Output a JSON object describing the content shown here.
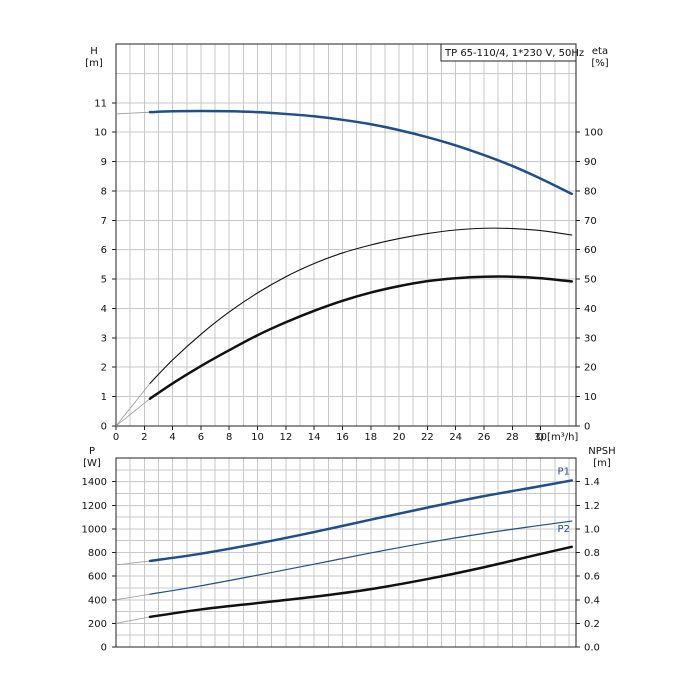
{
  "chart_data": [
    {
      "type": "line",
      "title": "TP 65-110/4, 1*230 V, 50Hz",
      "xlabel": "Q [m³/h]",
      "ylabel_left": [
        "H",
        "[m]"
      ],
      "ylabel_right": [
        "eta",
        "[%]"
      ],
      "xlim": [
        0,
        32.5
      ],
      "ylim_left": [
        0,
        13
      ],
      "ylim_right": [
        0,
        130
      ],
      "x_ticks": [
        0,
        2,
        4,
        6,
        8,
        10,
        12,
        14,
        16,
        18,
        20,
        22,
        24,
        26,
        28,
        30
      ],
      "y_ticks_left": [
        0,
        1,
        2,
        3,
        4,
        5,
        6,
        7,
        8,
        9,
        10,
        11
      ],
      "y_ticks_right": [
        0,
        10,
        20,
        30,
        40,
        50,
        60,
        70,
        80,
        90,
        100
      ],
      "grid": true,
      "series": [
        {
          "key": "H",
          "axis": "left",
          "color": "#1f4e8c",
          "width": 2.5,
          "ext_x": [
            0,
            2.4
          ],
          "ext_y": [
            10.62,
            10.68
          ],
          "x": [
            2.4,
            4,
            6,
            8,
            10,
            12,
            14,
            16,
            18,
            20,
            22,
            24,
            26,
            28,
            30,
            32.2
          ],
          "y": [
            10.68,
            10.71,
            10.72,
            10.71,
            10.68,
            10.62,
            10.54,
            10.42,
            10.27,
            10.07,
            9.83,
            9.55,
            9.22,
            8.85,
            8.42,
            7.9
          ]
        },
        {
          "key": "eta_thin",
          "axis": "right",
          "color": "#111111",
          "width": 1.1,
          "ext_x": [
            0,
            2.4
          ],
          "ext_y": [
            0,
            14.5
          ],
          "x": [
            2.4,
            4,
            6,
            8,
            10,
            12,
            14,
            16,
            18,
            20,
            22,
            24,
            26,
            28,
            30,
            32.2
          ],
          "y": [
            14.5,
            22.5,
            31.2,
            38.8,
            45.3,
            50.8,
            55.3,
            58.9,
            61.6,
            63.8,
            65.5,
            66.7,
            67.3,
            67.2,
            66.5,
            65.0
          ]
        },
        {
          "key": "eta_thick",
          "axis": "right",
          "color": "#111111",
          "width": 2.5,
          "ext_x": [
            0,
            2.4
          ],
          "ext_y": [
            0,
            9.3
          ],
          "x": [
            2.4,
            4,
            6,
            8,
            10,
            12,
            14,
            16,
            18,
            20,
            22,
            24,
            26,
            28,
            30,
            32.2
          ],
          "y": [
            9.3,
            14.5,
            20.4,
            25.8,
            30.9,
            35.3,
            39.2,
            42.6,
            45.4,
            47.6,
            49.3,
            50.3,
            50.8,
            50.8,
            50.3,
            49.2
          ]
        }
      ]
    },
    {
      "type": "line",
      "xlim": [
        0,
        32.5
      ],
      "ylabel_left": [
        "P",
        "[W]"
      ],
      "ylabel_right": [
        "NPSH",
        "[m]"
      ],
      "ylim_left": [
        0,
        1600
      ],
      "ylim_right": [
        0,
        1.6
      ],
      "y_ticks_left": [
        0,
        200,
        400,
        600,
        800,
        1000,
        1200,
        1400
      ],
      "y_ticks_right": [
        "0.0",
        "0.2",
        "0.4",
        "0.6",
        "0.8",
        "1.0",
        "1.2",
        "1.4"
      ],
      "grid": true,
      "series": [
        {
          "key": "P1",
          "name": "P1",
          "axis": "left",
          "color": "#1f4e8c",
          "width": 2.5,
          "ext_x": [
            0,
            2.4
          ],
          "ext_y": [
            695,
            728
          ],
          "x": [
            2.4,
            6,
            10,
            14,
            18,
            22,
            26,
            30,
            32.2
          ],
          "y": [
            728,
            790,
            876,
            973,
            1078,
            1180,
            1277,
            1362,
            1410
          ]
        },
        {
          "key": "P2",
          "name": "P2",
          "axis": "left",
          "color": "#1f4e8c",
          "width": 1.2,
          "ext_x": [
            0,
            2.4
          ],
          "ext_y": [
            400,
            447
          ],
          "x": [
            2.4,
            6,
            10,
            14,
            18,
            22,
            26,
            30,
            32.2
          ],
          "y": [
            447,
            518,
            608,
            701,
            796,
            884,
            962,
            1030,
            1066
          ]
        },
        {
          "key": "NPSH",
          "axis": "right",
          "color": "#111111",
          "width": 2.5,
          "ext_x": [
            0,
            2.4
          ],
          "ext_y": [
            0.2,
            0.255
          ],
          "x": [
            2.4,
            6,
            10,
            14,
            18,
            22,
            26,
            30,
            32.2
          ],
          "y": [
            0.255,
            0.318,
            0.372,
            0.425,
            0.49,
            0.575,
            0.675,
            0.788,
            0.848
          ]
        }
      ]
    }
  ]
}
